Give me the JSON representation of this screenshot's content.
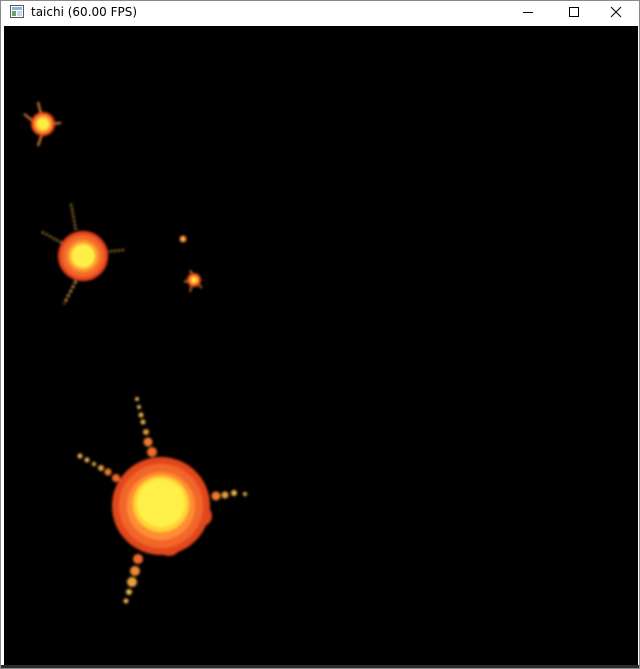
{
  "window": {
    "title": "taichi (60.00 FPS)",
    "app_icon": "taichi-window-icon",
    "controls": [
      "minimize-icon",
      "maximize-icon",
      "close-icon"
    ]
  },
  "canvas": {
    "background": "#000000",
    "particle_colors": {
      "core": "#ffee44",
      "glow": "#ff9a33",
      "shell": "#f05a24",
      "debris": "#e6b042"
    }
  }
}
